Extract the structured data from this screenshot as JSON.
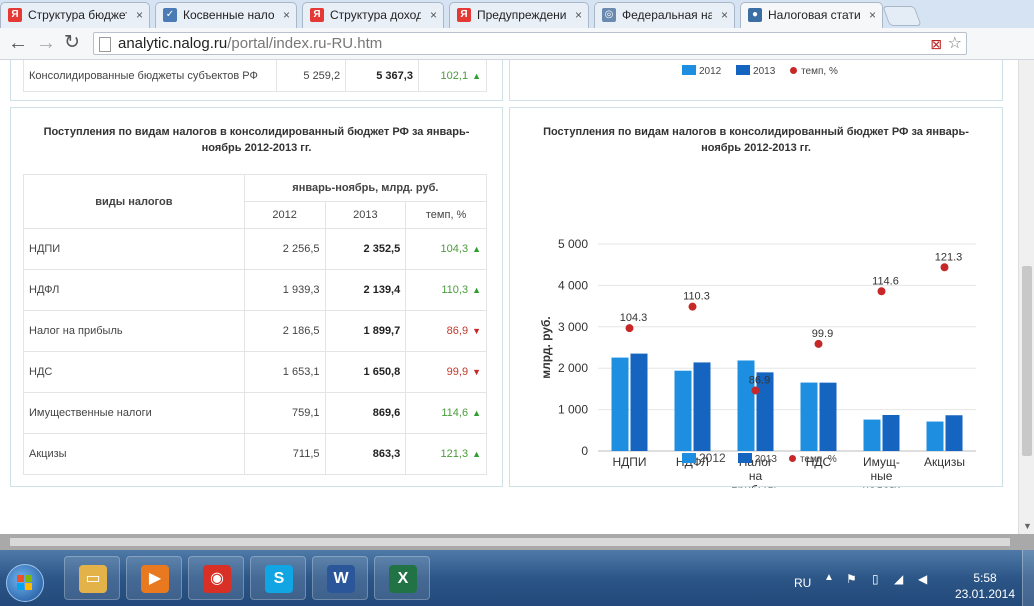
{
  "browser": {
    "tabs": [
      {
        "title": "Структура бюджетов",
        "favicon": "Я",
        "fav_color": "#e53935",
        "active": false
      },
      {
        "title": "Косвенные налоги",
        "favicon": "✓",
        "fav_color": "#4a7bb5",
        "active": false
      },
      {
        "title": "Структура доходов",
        "favicon": "Я",
        "fav_color": "#e53935",
        "active": false
      },
      {
        "title": "Предупреждение",
        "favicon": "Я",
        "fav_color": "#e53935",
        "active": false
      },
      {
        "title": "Федеральная налоговая",
        "favicon": "◎",
        "fav_color": "#6b8ab0",
        "active": false
      },
      {
        "title": "Налоговая статистика",
        "favicon": "●",
        "fav_color": "#3a6ea5",
        "active": true
      }
    ],
    "close_glyph": "×",
    "url_host": "analytic.nalog.ru",
    "url_path": "/portal/index.ru-RU.htm"
  },
  "top_table_row": {
    "name": "Консолидированные бюджеты субъектов РФ",
    "v2012": "5 259,2",
    "v2013": "5 367,3",
    "rate": "102,1",
    "trend": "up"
  },
  "top_legend": {
    "s2012": "2012",
    "s2013": "2013",
    "rate": "темп, %"
  },
  "left_panel": {
    "title_line1": "Поступления по видам налогов в консолидированный бюджет РФ  за январь-",
    "title_line2": "ноябрь 2012-2013 гг.",
    "header_kind": "виды налогов",
    "header_period": "январь-ноябрь, млрд. руб.",
    "col_2012": "2012",
    "col_2013": "2013",
    "col_rate": "темп, %",
    "rows": [
      {
        "name": "НДПИ",
        "v2012": "2 256,5",
        "v2013": "2 352,5",
        "rate": "104,3",
        "trend": "up"
      },
      {
        "name": "НДФЛ",
        "v2012": "1 939,3",
        "v2013": "2 139,4",
        "rate": "110,3",
        "trend": "up"
      },
      {
        "name": "Налог на прибыль",
        "v2012": "2 186,5",
        "v2013": "1 899,7",
        "rate": "86,9",
        "trend": "down"
      },
      {
        "name": "НДС",
        "v2012": "1 653,1",
        "v2013": "1 650,8",
        "rate": "99,9",
        "trend": "down"
      },
      {
        "name": "Имущественные налоги",
        "v2012": "759,1",
        "v2013": "869,6",
        "rate": "114,6",
        "trend": "up"
      },
      {
        "name": "Акцизы",
        "v2012": "711,5",
        "v2013": "863,3",
        "rate": "121,3",
        "trend": "up"
      }
    ]
  },
  "right_panel": {
    "title_line1": "Поступления по видам налогов в консолидированный бюджет РФ  за январь-",
    "title_line2": "ноябрь 2012-2013 гг."
  },
  "chart_data": {
    "type": "bar",
    "title": "Поступления по видам налогов в консолидированный бюджет РФ  за январь-ноябрь 2012-2013 гг.",
    "ylabel": "млрд. руб.",
    "xlabel": "",
    "ylim": [
      0,
      5000
    ],
    "yticks": [
      "0",
      "1 000",
      "2 000",
      "3 000",
      "4 000",
      "5 000"
    ],
    "ytick_values": [
      0,
      1000,
      2000,
      3000,
      4000,
      5000
    ],
    "categories": [
      [
        "НДПИ"
      ],
      [
        "НДФЛ"
      ],
      [
        "Налог",
        "на",
        "прибыль"
      ],
      [
        "НДС"
      ],
      [
        "Имущ-",
        "ные",
        "налоги"
      ],
      [
        "Акцизы"
      ]
    ],
    "series": [
      {
        "name": "2012",
        "color": "#1e8fe0",
        "values": [
          2256.5,
          1939.3,
          2186.5,
          1653.1,
          759.1,
          711.5
        ]
      },
      {
        "name": "2013",
        "color": "#1565c0",
        "values": [
          2352.5,
          2139.4,
          1899.7,
          1650.8,
          869.6,
          863.3
        ]
      }
    ],
    "rate_series": {
      "name": "темп, %",
      "color": "#c62828",
      "values": [
        104.3,
        110.3,
        86.9,
        99.9,
        114.6,
        121.3
      ],
      "labels": [
        "104.3",
        "110.3",
        "86.9",
        "99.9",
        "114.6",
        "121.3"
      ]
    },
    "grid": true,
    "legend_position": "bottom"
  },
  "taskbar": {
    "apps": [
      {
        "name": "explorer",
        "glyph": "▭",
        "color": "#e3b34a"
      },
      {
        "name": "media-player",
        "glyph": "▶",
        "color": "#e8791e"
      },
      {
        "name": "chrome",
        "glyph": "◉",
        "color": "#d93025"
      },
      {
        "name": "skype",
        "glyph": "S",
        "color": "#12a5e3"
      },
      {
        "name": "word",
        "glyph": "W",
        "color": "#2b579a"
      },
      {
        "name": "excel",
        "glyph": "X",
        "color": "#217346"
      }
    ],
    "lang": "RU",
    "time": "5:58",
    "date": "23.01.2014"
  }
}
